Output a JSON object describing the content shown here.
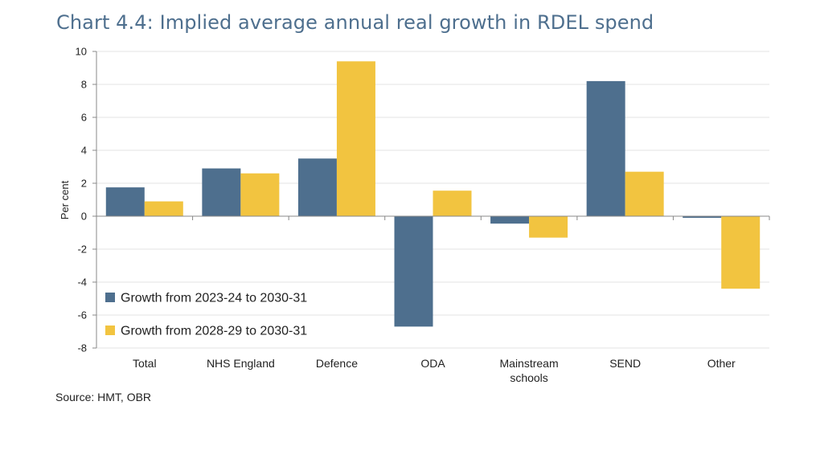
{
  "title": "Chart 4.4: Implied average annual real growth in RDEL spend",
  "source": "Source: HMT, OBR",
  "chart_data": {
    "type": "bar",
    "title": "Chart 4.4: Implied average annual real growth in RDEL spend",
    "xlabel": "",
    "ylabel": "Per cent",
    "ylim": [
      -8,
      10
    ],
    "yticks": [
      -8,
      -6,
      -4,
      -2,
      0,
      2,
      4,
      6,
      8,
      10
    ],
    "grid": true,
    "legend_position": "bottom-left",
    "categories": [
      [
        "Total"
      ],
      [
        "NHS England"
      ],
      [
        "Defence"
      ],
      [
        "ODA"
      ],
      [
        "Mainstream",
        "schools"
      ],
      [
        "SEND"
      ],
      [
        "Other"
      ]
    ],
    "series": [
      {
        "name": "Growth from 2023-24 to 2030-31",
        "color": "#4e6f8e",
        "values": [
          1.75,
          2.9,
          3.5,
          -6.7,
          -0.45,
          8.2,
          -0.1
        ]
      },
      {
        "name": "Growth from 2028-29 to 2030-31",
        "color": "#f2c440",
        "values": [
          0.9,
          2.6,
          9.4,
          1.55,
          -1.3,
          2.7,
          -4.4
        ]
      }
    ]
  }
}
